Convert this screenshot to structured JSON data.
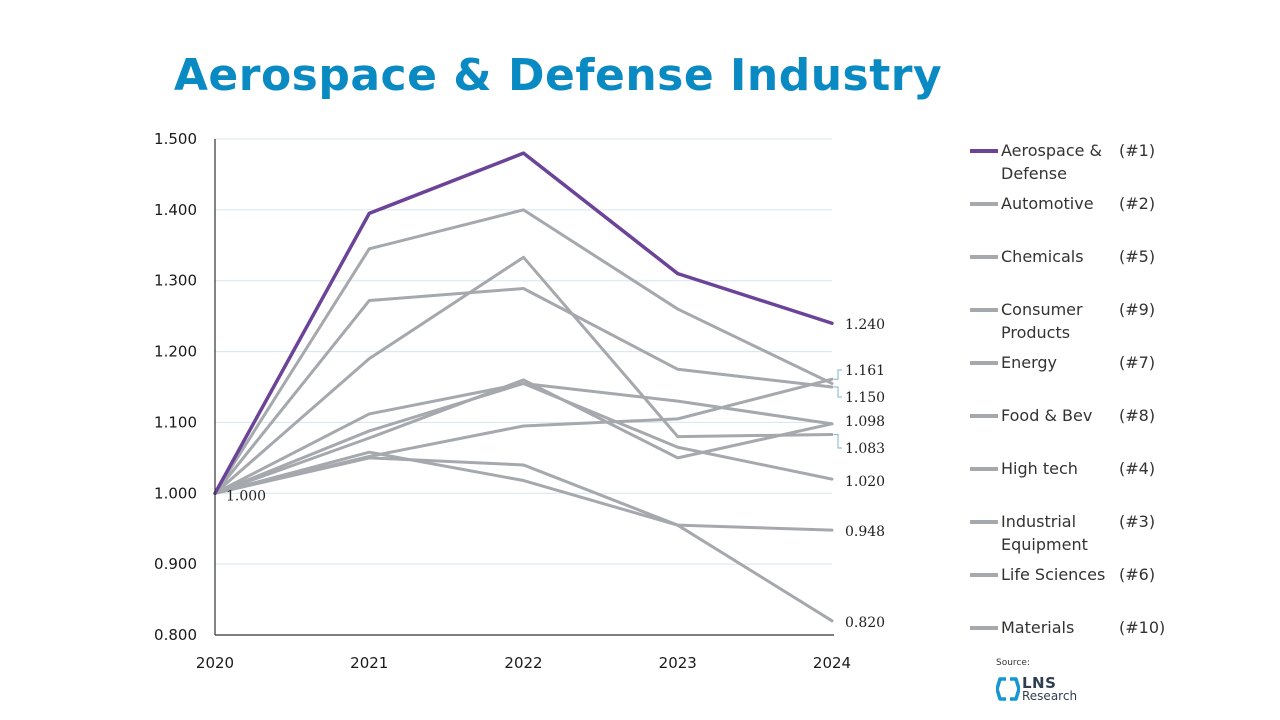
{
  "title": "Aerospace & Defense Industry",
  "colors": {
    "title": "#0a8ac2",
    "highlight": "#6b4397",
    "series": "#a5a8ad",
    "grid": "#d5e6ee",
    "axis": "#333333",
    "logo": "#1497d4"
  },
  "chart_data": {
    "type": "line",
    "title": "Aerospace & Defense Industry",
    "x": [
      "2020",
      "2021",
      "2022",
      "2023",
      "2024"
    ],
    "ylim": [
      0.8,
      1.5
    ],
    "yticks": [
      "0.800",
      "0.900",
      "1.000",
      "1.100",
      "1.200",
      "1.300",
      "1.400",
      "1.500"
    ],
    "grid": true,
    "start_label": "1.000",
    "series": [
      {
        "name": "Materials",
        "rank": "(#10)",
        "values": [
          1.0,
          1.05,
          1.04,
          0.955,
          0.82
        ],
        "end_label": "0.820"
      },
      {
        "name": "Life Sciences",
        "rank": "(#6)",
        "values": [
          1.0,
          1.058,
          1.018,
          0.955,
          0.948
        ],
        "end_label": "0.948"
      },
      {
        "name": "Industrial Equipment",
        "rank": "(#3)",
        "values": [
          1.0,
          1.112,
          1.155,
          1.065,
          1.02
        ],
        "end_label": "1.020"
      },
      {
        "name": "High tech",
        "rank": "(#4)",
        "values": [
          1.0,
          1.052,
          1.095,
          1.105,
          1.161
        ],
        "end_label": "1.161"
      },
      {
        "name": "Food & Bev",
        "rank": "(#8)",
        "values": [
          1.0,
          1.078,
          1.16,
          1.05,
          1.098
        ],
        "end_label": "1.098"
      },
      {
        "name": "Energy",
        "rank": "(#7)",
        "values": [
          1.0,
          1.088,
          1.155,
          1.13,
          1.098
        ],
        "end_label": ""
      },
      {
        "name": "Consumer Products",
        "rank": "(#9)",
        "values": [
          1.0,
          1.19,
          1.333,
          1.08,
          1.083
        ],
        "end_label": "1.083"
      },
      {
        "name": "Chemicals",
        "rank": "(#5)",
        "values": [
          1.0,
          1.272,
          1.289,
          1.175,
          1.15
        ],
        "end_label": "1.150"
      },
      {
        "name": "Automotive",
        "rank": "(#2)",
        "values": [
          1.0,
          1.345,
          1.4,
          1.26,
          1.155
        ],
        "end_label": ""
      },
      {
        "name": "Aerospace & Defense",
        "rank": "(#1)",
        "values": [
          1.0,
          1.395,
          1.48,
          1.31,
          1.24
        ],
        "end_label": "1.240",
        "highlight": true
      }
    ]
  },
  "legend": [
    {
      "name": "Aerospace & Defense",
      "rank": "(#1)",
      "highlight": true
    },
    {
      "name": "Automotive",
      "rank": "(#2)"
    },
    {
      "name": "Chemicals",
      "rank": "(#5)"
    },
    {
      "name": "Consumer Products",
      "rank": "(#9)"
    },
    {
      "name": "Energy",
      "rank": "(#7)"
    },
    {
      "name": "Food & Bev",
      "rank": "(#8)"
    },
    {
      "name": "High tech",
      "rank": "(#4)"
    },
    {
      "name": "Industrial Equipment",
      "rank": "(#3)"
    },
    {
      "name": "Life Sciences",
      "rank": "(#6)"
    },
    {
      "name": "Materials",
      "rank": "(#10)"
    }
  ],
  "source": {
    "label": "Source:",
    "logo_main": "LNS",
    "logo_sub": "Research"
  }
}
